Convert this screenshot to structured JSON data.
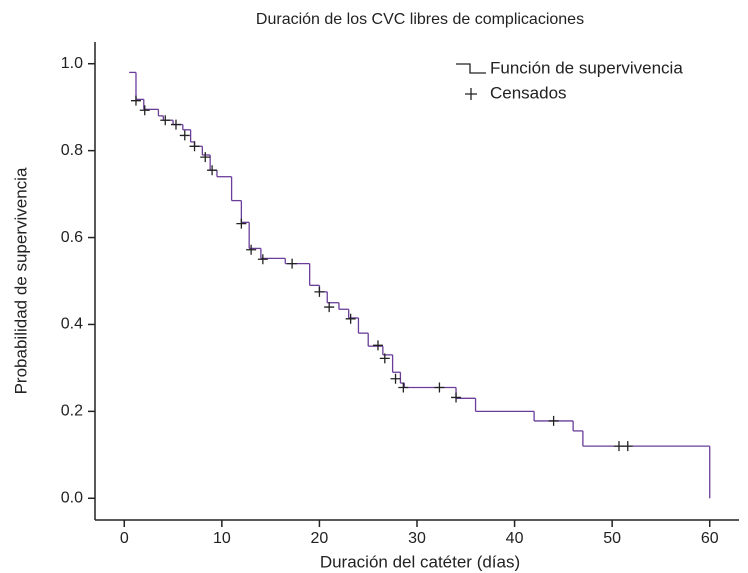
{
  "chart_data": {
    "type": "step",
    "title": "Duración de los CVC libres de complicaciones",
    "x_label": "Duración del catéter (días)",
    "y_label": "Probabilidad de supervivencia",
    "xlim": [
      -3,
      63
    ],
    "ylim": [
      -0.05,
      1.05
    ],
    "xticks": [
      0,
      10,
      20,
      30,
      40,
      50,
      60
    ],
    "yticks": [
      {
        "value": 0,
        "label": "0.0"
      },
      {
        "value": 0.2,
        "label": "0.2"
      },
      {
        "value": 0.4,
        "label": "0.4"
      },
      {
        "value": 0.6,
        "label": "0.6"
      },
      {
        "value": 0.8,
        "label": "0.8"
      },
      {
        "value": 1,
        "label": "1.0"
      }
    ],
    "legend": "upper right",
    "series": [
      {
        "name": "Función de supervivencia",
        "color": "#6a3d9a",
        "marker": "step",
        "x": [
          0.5,
          1.2,
          2.0,
          3.5,
          4.0,
          5.0,
          6.0,
          6.8,
          7.2,
          8.0,
          8.8,
          9.5,
          11.0,
          12.0,
          12.8,
          14.0,
          16.5,
          19.0,
          20.0,
          20.8,
          22.0,
          23.0,
          24.0,
          25.0,
          26.5,
          27.5,
          28.3,
          28.7,
          34.0,
          36.0,
          42.0,
          46.0,
          47.0,
          60.0
        ],
        "values": [
          0.98,
          0.918,
          0.895,
          0.88,
          0.87,
          0.86,
          0.848,
          0.82,
          0.81,
          0.79,
          0.755,
          0.74,
          0.685,
          0.635,
          0.575,
          0.552,
          0.54,
          0.49,
          0.475,
          0.45,
          0.435,
          0.415,
          0.38,
          0.35,
          0.33,
          0.29,
          0.265,
          0.255,
          0.23,
          0.2,
          0.178,
          0.155,
          0.12,
          0
        ]
      },
      {
        "name": "Censados",
        "color": "#222222",
        "marker": "+",
        "x": [
          1.2,
          2.1,
          4.2,
          5.3,
          6.2,
          7.2,
          8.3,
          9.0,
          12.0,
          13.0,
          14.2,
          17.2,
          20.0,
          21.0,
          23.2,
          26.0,
          26.7,
          27.8,
          28.6,
          32.3,
          34.0,
          44.0,
          50.7,
          51.6
        ],
        "values": [
          0.915,
          0.893,
          0.87,
          0.86,
          0.835,
          0.81,
          0.785,
          0.755,
          0.632,
          0.572,
          0.55,
          0.54,
          0.475,
          0.44,
          0.413,
          0.352,
          0.322,
          0.275,
          0.255,
          0.255,
          0.232,
          0.178,
          0.12,
          0.12
        ]
      }
    ]
  }
}
